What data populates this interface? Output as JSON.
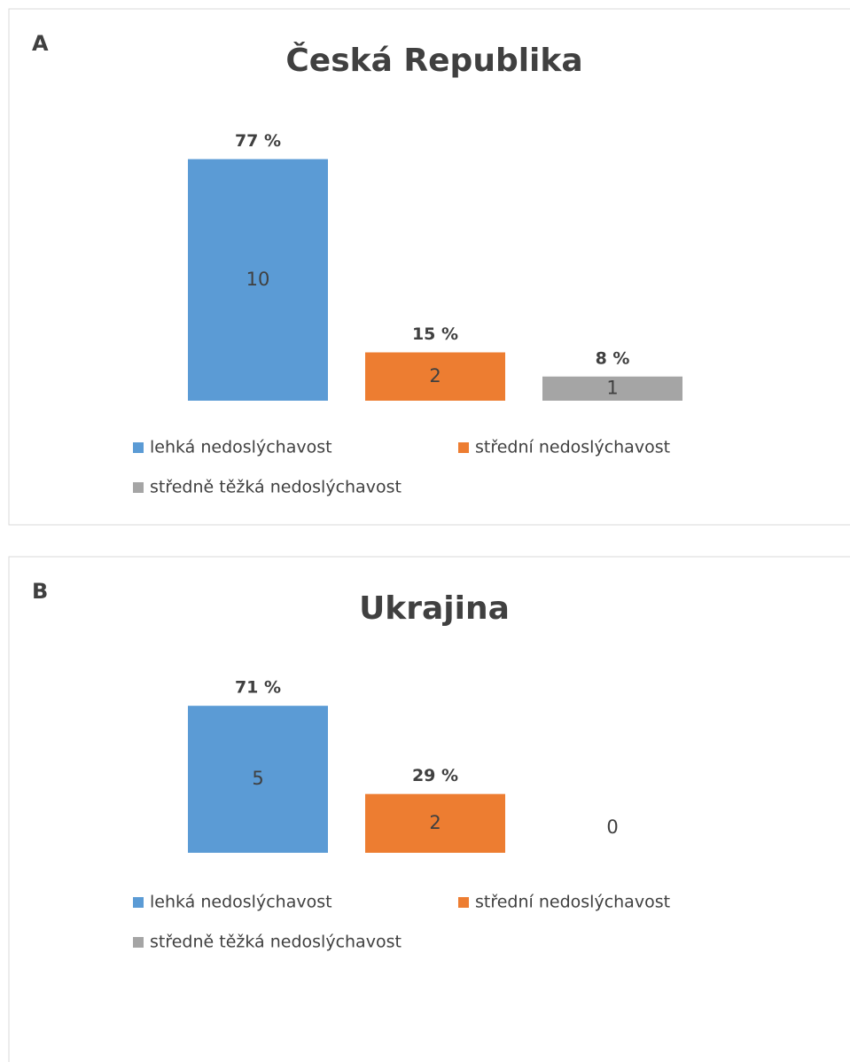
{
  "chart_data": [
    {
      "type": "bar",
      "label": "A",
      "title": "Česká Republika",
      "series": [
        {
          "name": "lehká nedoslýchavost",
          "color": "#5b9bd5",
          "values": [
            10
          ],
          "percent": [
            77
          ],
          "percent_labels": [
            "77 %"
          ]
        },
        {
          "name": "střední nedoslýchavost",
          "color": "#ed7d31",
          "values": [
            2
          ],
          "percent": [
            15
          ],
          "percent_labels": [
            "15 %"
          ]
        },
        {
          "name": "středně těžká nedoslýchavost",
          "color": "#a5a5a5",
          "values": [
            1
          ],
          "percent": [
            8
          ],
          "percent_labels": [
            "8 %"
          ]
        }
      ]
    },
    {
      "type": "bar",
      "label": "B",
      "title": "Ukrajina",
      "series": [
        {
          "name": "lehká nedoslýchavost",
          "color": "#5b9bd5",
          "values": [
            5
          ],
          "percent": [
            71
          ],
          "percent_labels": [
            "71 %"
          ]
        },
        {
          "name": "střední nedoslýchavost",
          "color": "#ed7d31",
          "values": [
            2
          ],
          "percent": [
            29
          ],
          "percent_labels": [
            "29 %"
          ]
        },
        {
          "name": "středně těžká nedoslýchavost",
          "color": "#a5a5a5",
          "values": [
            0
          ]
        }
      ]
    }
  ]
}
